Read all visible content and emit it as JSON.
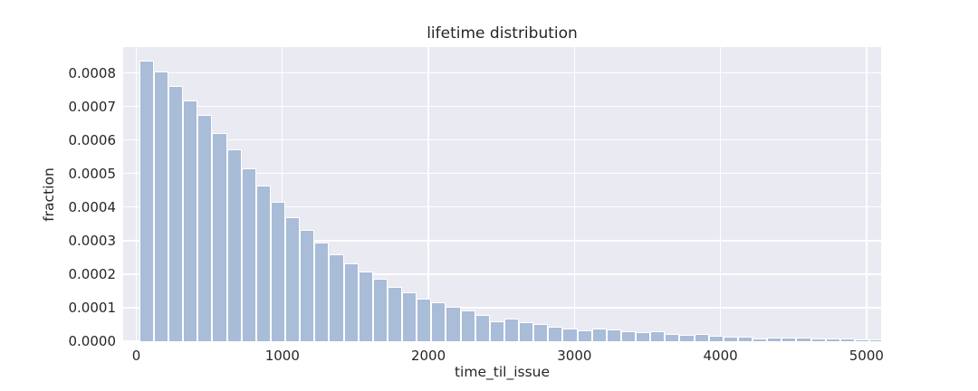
{
  "chart_data": {
    "type": "histogram",
    "title": "lifetime distribution",
    "xlabel": "time_til_issue",
    "ylabel": "fraction",
    "bins": {
      "start": 20,
      "width": 100,
      "count": 51
    },
    "values": [
      0.000837,
      0.000803,
      0.00076,
      0.000717,
      0.000674,
      0.00062,
      0.000571,
      0.000515,
      0.000465,
      0.000415,
      0.00037,
      0.000331,
      0.000294,
      0.00026,
      0.000232,
      0.000208,
      0.000185,
      0.000163,
      0.000145,
      0.000127,
      0.000115,
      0.000102,
      9.3e-05,
      7.8e-05,
      5.9e-05,
      6.7e-05,
      5.7e-05,
      5.1e-05,
      4.3e-05,
      3.8e-05,
      3.3e-05,
      3.9e-05,
      3.4e-05,
      3.1e-05,
      2.7e-05,
      2.95e-05,
      2.25e-05,
      2e-05,
      2.05e-05,
      1.5e-05,
      1.35e-05,
      1.3e-05,
      9e-06,
      1e-05,
      1.05e-05,
      1e-05,
      7.5e-06,
      7.5e-06,
      8e-06,
      5.5e-06,
      6e-06
    ],
    "x_ticks": [
      0,
      1000,
      2000,
      3000,
      4000,
      5000
    ],
    "x_tick_labels": [
      "0",
      "1000",
      "2000",
      "3000",
      "4000",
      "5000"
    ],
    "y_ticks": [
      0,
      0.0001,
      0.0002,
      0.0003,
      0.0004,
      0.0005,
      0.0006,
      0.0007,
      0.0008
    ],
    "y_tick_labels": [
      "0.0000",
      "0.0001",
      "0.0002",
      "0.0003",
      "0.0004",
      "0.0005",
      "0.0006",
      "0.0007",
      "0.0008"
    ],
    "xlim": [
      -90,
      5100
    ],
    "ylim": [
      0,
      0.000877
    ],
    "grid": true,
    "legend": null,
    "colors": {
      "bar": "#a9bcd8",
      "bar_edge": "#ffffff",
      "plot_background": "#eaeaf2",
      "grid": "#ffffff",
      "text": "#262626",
      "figure_background": "#ffffff"
    }
  }
}
